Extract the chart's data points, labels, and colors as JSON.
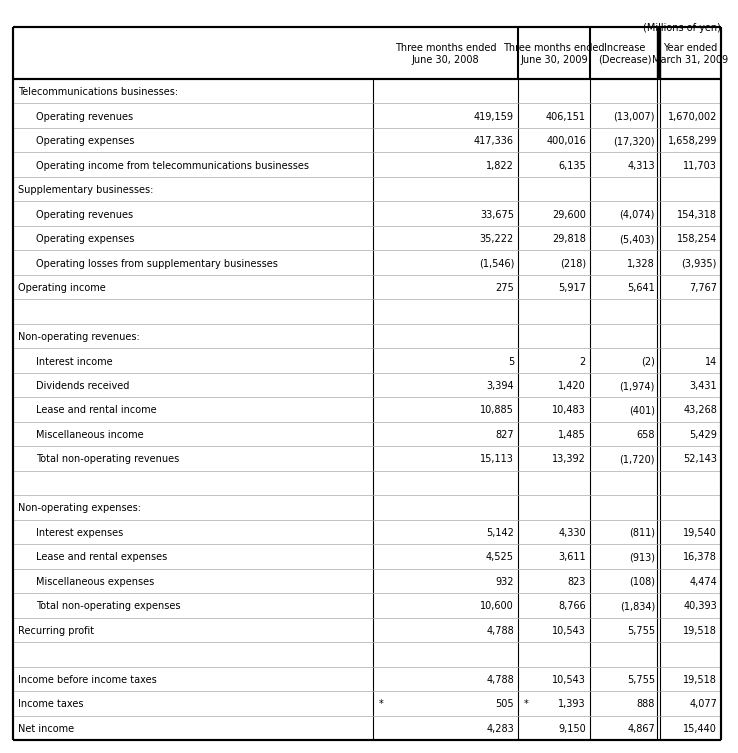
{
  "title_note": "(Millions of yen)",
  "col_headers": [
    "",
    "Three months ended\nJune 30, 2008",
    "Three months ended\nJune 30, 2009",
    "Increase\n(Decrease)",
    "Year ended\nMarch 31, 2009"
  ],
  "rows": [
    {
      "label": "Telecommunications businesses:",
      "indent": 0,
      "values": [
        "",
        "",
        "",
        ""
      ],
      "category": true,
      "blank_sep_above": false
    },
    {
      "label": "Operating revenues",
      "indent": 1,
      "values": [
        "419,159",
        "406,151",
        "(13,007)",
        "1,670,002"
      ],
      "category": false,
      "blank_sep_above": false
    },
    {
      "label": "Operating expenses",
      "indent": 1,
      "values": [
        "417,336",
        "400,016",
        "(17,320)",
        "1,658,299"
      ],
      "category": false,
      "blank_sep_above": false
    },
    {
      "label": "Operating income from telecommunications businesses",
      "indent": 1,
      "values": [
        "1,822",
        "6,135",
        "4,313",
        "11,703"
      ],
      "category": false,
      "blank_sep_above": false
    },
    {
      "label": "Supplementary businesses:",
      "indent": 0,
      "values": [
        "",
        "",
        "",
        ""
      ],
      "category": true,
      "blank_sep_above": false
    },
    {
      "label": "Operating revenues",
      "indent": 1,
      "values": [
        "33,675",
        "29,600",
        "(4,074)",
        "154,318"
      ],
      "category": false,
      "blank_sep_above": false
    },
    {
      "label": "Operating expenses",
      "indent": 1,
      "values": [
        "35,222",
        "29,818",
        "(5,403)",
        "158,254"
      ],
      "category": false,
      "blank_sep_above": false
    },
    {
      "label": "Operating losses from supplementary businesses",
      "indent": 1,
      "values": [
        "(1,546)",
        "(218)",
        "1,328",
        "(3,935)"
      ],
      "category": false,
      "blank_sep_above": false
    },
    {
      "label": "Operating income",
      "indent": 0,
      "values": [
        "275",
        "5,917",
        "5,641",
        "7,767"
      ],
      "category": false,
      "blank_sep_above": false
    },
    {
      "label": "",
      "indent": 0,
      "values": [
        "",
        "",
        "",
        ""
      ],
      "category": false,
      "blank_sep_above": false,
      "spacer": true
    },
    {
      "label": "Non-operating revenues:",
      "indent": 0,
      "values": [
        "",
        "",
        "",
        ""
      ],
      "category": true,
      "blank_sep_above": false
    },
    {
      "label": "Interest income",
      "indent": 1,
      "values": [
        "5",
        "2",
        "(2)",
        "14"
      ],
      "category": false,
      "blank_sep_above": false
    },
    {
      "label": "Dividends received",
      "indent": 1,
      "values": [
        "3,394",
        "1,420",
        "(1,974)",
        "3,431"
      ],
      "category": false,
      "blank_sep_above": false
    },
    {
      "label": "Lease and rental income",
      "indent": 1,
      "values": [
        "10,885",
        "10,483",
        "(401)",
        "43,268"
      ],
      "category": false,
      "blank_sep_above": false
    },
    {
      "label": "Miscellaneous income",
      "indent": 1,
      "values": [
        "827",
        "1,485",
        "658",
        "5,429"
      ],
      "category": false,
      "blank_sep_above": false
    },
    {
      "label": "Total non-operating revenues",
      "indent": 1,
      "values": [
        "15,113",
        "13,392",
        "(1,720)",
        "52,143"
      ],
      "category": false,
      "blank_sep_above": false
    },
    {
      "label": "",
      "indent": 0,
      "values": [
        "",
        "",
        "",
        ""
      ],
      "category": false,
      "blank_sep_above": false,
      "spacer": true
    },
    {
      "label": "Non-operating expenses:",
      "indent": 0,
      "values": [
        "",
        "",
        "",
        ""
      ],
      "category": true,
      "blank_sep_above": false
    },
    {
      "label": "Interest expenses",
      "indent": 1,
      "values": [
        "5,142",
        "4,330",
        "(811)",
        "19,540"
      ],
      "category": false,
      "blank_sep_above": false
    },
    {
      "label": "Lease and rental expenses",
      "indent": 1,
      "values": [
        "4,525",
        "3,611",
        "(913)",
        "16,378"
      ],
      "category": false,
      "blank_sep_above": false
    },
    {
      "label": "Miscellaneous expenses",
      "indent": 1,
      "values": [
        "932",
        "823",
        "(108)",
        "4,474"
      ],
      "category": false,
      "blank_sep_above": false
    },
    {
      "label": "Total non-operating expenses",
      "indent": 1,
      "values": [
        "10,600",
        "8,766",
        "(1,834)",
        "40,393"
      ],
      "category": false,
      "blank_sep_above": false
    },
    {
      "label": "Recurring profit",
      "indent": 0,
      "values": [
        "4,788",
        "10,543",
        "5,755",
        "19,518"
      ],
      "category": false,
      "blank_sep_above": false
    },
    {
      "label": "",
      "indent": 0,
      "values": [
        "",
        "",
        "",
        ""
      ],
      "category": false,
      "blank_sep_above": false,
      "spacer": true
    },
    {
      "label": "Income before income taxes",
      "indent": 0,
      "values": [
        "4,788",
        "10,543",
        "5,755",
        "19,518"
      ],
      "category": false,
      "blank_sep_above": false
    },
    {
      "label": "Income taxes",
      "indent": 0,
      "values": [
        "505",
        "1,393",
        "888",
        "4,077"
      ],
      "category": false,
      "blank_sep_above": false,
      "star": [
        0,
        1
      ]
    },
    {
      "label": "Net income",
      "indent": 0,
      "values": [
        "4,283",
        "9,150",
        "4,867",
        "15,440"
      ],
      "category": false,
      "blank_sep_above": false
    }
  ],
  "font_size": 7.0,
  "bg_color": "#ffffff",
  "text_color": "#000000",
  "line_color": "#000000"
}
